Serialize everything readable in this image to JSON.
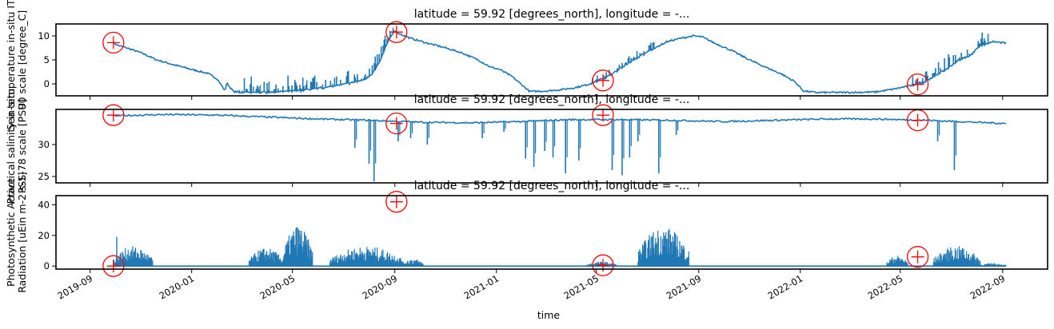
{
  "figure": {
    "xlabel": "time"
  },
  "chart_data": [
    {
      "type": "line",
      "title": "latitude = 59.92 [degrees_north], longitude = -...",
      "ylabel_lines": [
        "Sea temperature in-situ ITS-",
        "90 scale [degree_C]"
      ],
      "ylim": [
        -2.5,
        12.5
      ],
      "yticks": [
        0,
        5,
        10
      ],
      "xlim": [
        "2019-07-22",
        "2022-10-25"
      ],
      "series_color": "#1f77b4",
      "marker_color": "#ff0000",
      "series": [
        {
          "x": [
            "2019-09-29",
            "2019-10-05",
            "2019-10-15",
            "2019-11-01",
            "2019-11-20",
            "2019-12-10",
            "2020-01-01",
            "2020-01-20",
            "2020-02-01",
            "2020-02-10",
            "2020-02-12",
            "2020-02-20",
            "2020-03-01",
            "2020-03-20",
            "2020-04-10",
            "2020-05-01",
            "2020-05-20",
            "2020-06-10",
            "2020-06-25",
            "2020-07-10",
            "2020-07-25",
            "2020-08-05",
            "2020-08-15",
            "2020-08-25",
            "2020-09-01",
            "2020-09-10",
            "2020-09-20",
            "2020-10-10",
            "2020-11-01",
            "2020-11-20",
            "2020-12-10",
            "2020-12-25",
            "2021-01-05",
            "2021-01-20",
            "2021-02-10",
            "2021-03-01",
            "2021-03-20",
            "2021-04-05",
            "2021-04-20",
            "2021-05-05",
            "2021-05-20",
            "2021-06-01",
            "2021-06-20",
            "2021-07-10",
            "2021-07-25",
            "2021-08-10",
            "2021-08-25",
            "2021-09-05",
            "2021-09-20",
            "2021-10-10",
            "2021-11-01",
            "2021-11-20",
            "2021-12-10",
            "2021-12-25",
            "2022-01-05",
            "2022-01-20",
            "2022-02-01",
            "2022-03-01",
            "2022-04-01",
            "2022-04-20",
            "2022-05-10",
            "2022-05-28",
            "2022-06-10",
            "2022-06-25",
            "2022-07-10",
            "2022-07-25",
            "2022-08-05",
            "2022-08-20",
            "2022-09-05"
          ],
          "y": [
            8.5,
            8.0,
            7.5,
            6.5,
            5.0,
            4.0,
            3.0,
            2.2,
            1.0,
            -1.5,
            0.2,
            -1.6,
            -1.8,
            -1.8,
            -1.7,
            -1.5,
            -1.2,
            -0.8,
            -0.3,
            0.2,
            0.8,
            2.0,
            5.0,
            9.5,
            11.0,
            10.2,
            9.5,
            8.5,
            7.5,
            6.5,
            5.0,
            3.5,
            3.0,
            1.5,
            -1.6,
            -1.5,
            -1.2,
            -0.8,
            -0.2,
            0.8,
            2.0,
            3.5,
            5.5,
            7.5,
            8.8,
            9.5,
            10.0,
            9.8,
            8.5,
            7.0,
            5.0,
            3.5,
            2.0,
            0.5,
            -1.5,
            -1.8,
            -1.8,
            -1.8,
            -1.7,
            -1.2,
            -0.5,
            0.2,
            1.5,
            3.0,
            5.0,
            6.0,
            8.0,
            8.8,
            8.5
          ],
          "spikes": [
            {
              "start": "2020-02-25",
              "end": "2020-09-05",
              "amp": 3.5
            },
            {
              "start": "2021-04-25",
              "end": "2021-07-15",
              "amp": 2.0
            },
            {
              "start": "2022-05-15",
              "end": "2022-08-15",
              "amp": 3.0
            }
          ]
        }
      ],
      "markers": [
        {
          "x": "2019-09-29",
          "y": 8.6
        },
        {
          "x": "2020-09-03",
          "y": 10.8
        },
        {
          "x": "2021-05-09",
          "y": 0.7
        },
        {
          "x": "2022-05-22",
          "y": -0.1
        }
      ]
    },
    {
      "type": "line",
      "title": "latitude = 59.92 [degrees_north], longitude = -...",
      "ylabel_lines": [
        "Practical salinity in-situ",
        "PSS-78 scale [PSU]"
      ],
      "ylim": [
        24,
        35.5
      ],
      "yticks": [
        25,
        30
      ],
      "xlim": [
        "2019-07-22",
        "2022-10-25"
      ],
      "series_color": "#1f77b4",
      "marker_color": "#ff0000",
      "series": [
        {
          "x": [
            "2019-09-29",
            "2019-12-01",
            "2020-02-01",
            "2020-04-01",
            "2020-06-01",
            "2020-08-01",
            "2020-10-01",
            "2020-12-01",
            "2021-02-01",
            "2021-04-01",
            "2021-06-01",
            "2021-08-01",
            "2021-10-01",
            "2021-12-01",
            "2022-02-01",
            "2022-04-01",
            "2022-06-01",
            "2022-09-05"
          ],
          "y": [
            34.5,
            34.7,
            34.6,
            34.3,
            34.0,
            33.8,
            33.5,
            33.4,
            33.6,
            33.9,
            33.9,
            33.8,
            33.6,
            33.8,
            34.0,
            34.0,
            33.8,
            33.3
          ],
          "dips": [
            {
              "x": "2020-08-07",
              "y": 24.2
            },
            {
              "x": "2020-08-01",
              "y": 27.0
            },
            {
              "x": "2020-07-15",
              "y": 29.5
            },
            {
              "x": "2020-09-05",
              "y": 30.5
            },
            {
              "x": "2020-09-20",
              "y": 31.0
            },
            {
              "x": "2020-10-10",
              "y": 30.0
            },
            {
              "x": "2020-12-15",
              "y": 31.0
            },
            {
              "x": "2021-01-10",
              "y": 32.0
            },
            {
              "x": "2021-02-05",
              "y": 27.8
            },
            {
              "x": "2021-02-15",
              "y": 26.5
            },
            {
              "x": "2021-02-28",
              "y": 29.0
            },
            {
              "x": "2021-03-10",
              "y": 28.0
            },
            {
              "x": "2021-03-25",
              "y": 25.5
            },
            {
              "x": "2021-04-10",
              "y": 27.5
            },
            {
              "x": "2021-05-20",
              "y": 26.0
            },
            {
              "x": "2021-06-01",
              "y": 25.2
            },
            {
              "x": "2021-06-10",
              "y": 28.0
            },
            {
              "x": "2021-06-20",
              "y": 30.5
            },
            {
              "x": "2021-07-15",
              "y": 25.5
            },
            {
              "x": "2021-08-05",
              "y": 31.5
            },
            {
              "x": "2022-06-15",
              "y": 30.5
            },
            {
              "x": "2022-07-05",
              "y": 26.0
            }
          ]
        }
      ],
      "markers": [
        {
          "x": "2019-09-29",
          "y": 34.6
        },
        {
          "x": "2020-09-03",
          "y": 33.3
        },
        {
          "x": "2021-05-09",
          "y": 34.6
        },
        {
          "x": "2022-05-22",
          "y": 33.8
        }
      ]
    },
    {
      "type": "line",
      "title": "latitude = 59.92 [degrees_north], longitude = -...",
      "ylabel_lines": [
        "Photosynthetic Active",
        "Radiation [uEin m-2 s-1]"
      ],
      "ylim": [
        -2,
        46
      ],
      "yticks": [
        0,
        20,
        40
      ],
      "xlim": [
        "2019-07-22",
        "2022-10-25"
      ],
      "series_color": "#1f77b4",
      "marker_color": "#ff0000",
      "series": [
        {
          "bursts": [
            {
              "start": "2019-09-29",
              "end": "2019-11-15",
              "amp": 13
            },
            {
              "start": "2020-03-10",
              "end": "2020-04-20",
              "amp": 12
            },
            {
              "start": "2020-04-20",
              "end": "2020-05-25",
              "amp": 27
            },
            {
              "start": "2020-06-15",
              "end": "2020-09-10",
              "amp": 13
            },
            {
              "start": "2020-09-10",
              "end": "2020-10-05",
              "amp": 5
            },
            {
              "start": "2021-04-20",
              "end": "2021-05-25",
              "amp": 3
            },
            {
              "start": "2021-06-20",
              "end": "2021-08-20",
              "amp": 26
            },
            {
              "start": "2022-04-15",
              "end": "2022-05-10",
              "amp": 7
            },
            {
              "start": "2022-06-10",
              "end": "2022-08-05",
              "amp": 13
            },
            {
              "start": "2022-08-05",
              "end": "2022-09-05",
              "amp": 2
            }
          ],
          "isolated_spike": {
            "x": "2019-10-03",
            "y": 19
          }
        }
      ],
      "markers": [
        {
          "x": "2019-09-29",
          "y": 0
        },
        {
          "x": "2020-09-03",
          "y": 42
        },
        {
          "x": "2021-05-09",
          "y": 0.5
        },
        {
          "x": "2022-05-22",
          "y": 6
        }
      ]
    }
  ],
  "xticks": [
    "2019-09",
    "2020-01",
    "2020-05",
    "2020-09",
    "2021-01",
    "2021-05",
    "2021-09",
    "2022-01",
    "2022-05",
    "2022-09"
  ]
}
